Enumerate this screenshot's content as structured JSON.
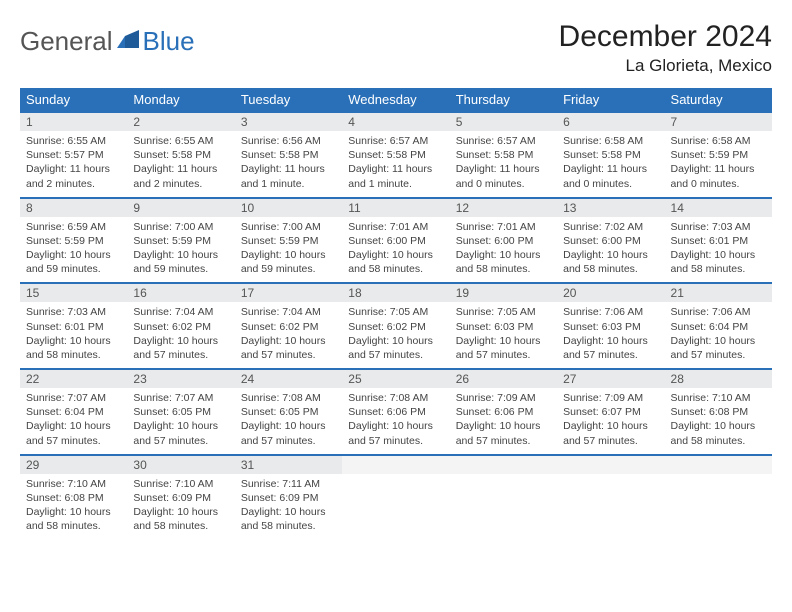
{
  "brand": {
    "word1": "General",
    "word2": "Blue"
  },
  "title": "December 2024",
  "location": "La Glorieta, Mexico",
  "colors": {
    "header_bg": "#2a70b8",
    "header_text": "#ffffff",
    "daynum_bg": "#e9eaeb",
    "row_divider": "#2a70b8",
    "body_text": "#444444",
    "brand_gray": "#555555",
    "brand_blue": "#2a70b8"
  },
  "day_headers": [
    "Sunday",
    "Monday",
    "Tuesday",
    "Wednesday",
    "Thursday",
    "Friday",
    "Saturday"
  ],
  "weeks": [
    [
      {
        "n": "1",
        "sr": "Sunrise: 6:55 AM",
        "ss": "Sunset: 5:57 PM",
        "dl": "Daylight: 11 hours and 2 minutes."
      },
      {
        "n": "2",
        "sr": "Sunrise: 6:55 AM",
        "ss": "Sunset: 5:58 PM",
        "dl": "Daylight: 11 hours and 2 minutes."
      },
      {
        "n": "3",
        "sr": "Sunrise: 6:56 AM",
        "ss": "Sunset: 5:58 PM",
        "dl": "Daylight: 11 hours and 1 minute."
      },
      {
        "n": "4",
        "sr": "Sunrise: 6:57 AM",
        "ss": "Sunset: 5:58 PM",
        "dl": "Daylight: 11 hours and 1 minute."
      },
      {
        "n": "5",
        "sr": "Sunrise: 6:57 AM",
        "ss": "Sunset: 5:58 PM",
        "dl": "Daylight: 11 hours and 0 minutes."
      },
      {
        "n": "6",
        "sr": "Sunrise: 6:58 AM",
        "ss": "Sunset: 5:58 PM",
        "dl": "Daylight: 11 hours and 0 minutes."
      },
      {
        "n": "7",
        "sr": "Sunrise: 6:58 AM",
        "ss": "Sunset: 5:59 PM",
        "dl": "Daylight: 11 hours and 0 minutes."
      }
    ],
    [
      {
        "n": "8",
        "sr": "Sunrise: 6:59 AM",
        "ss": "Sunset: 5:59 PM",
        "dl": "Daylight: 10 hours and 59 minutes."
      },
      {
        "n": "9",
        "sr": "Sunrise: 7:00 AM",
        "ss": "Sunset: 5:59 PM",
        "dl": "Daylight: 10 hours and 59 minutes."
      },
      {
        "n": "10",
        "sr": "Sunrise: 7:00 AM",
        "ss": "Sunset: 5:59 PM",
        "dl": "Daylight: 10 hours and 59 minutes."
      },
      {
        "n": "11",
        "sr": "Sunrise: 7:01 AM",
        "ss": "Sunset: 6:00 PM",
        "dl": "Daylight: 10 hours and 58 minutes."
      },
      {
        "n": "12",
        "sr": "Sunrise: 7:01 AM",
        "ss": "Sunset: 6:00 PM",
        "dl": "Daylight: 10 hours and 58 minutes."
      },
      {
        "n": "13",
        "sr": "Sunrise: 7:02 AM",
        "ss": "Sunset: 6:00 PM",
        "dl": "Daylight: 10 hours and 58 minutes."
      },
      {
        "n": "14",
        "sr": "Sunrise: 7:03 AM",
        "ss": "Sunset: 6:01 PM",
        "dl": "Daylight: 10 hours and 58 minutes."
      }
    ],
    [
      {
        "n": "15",
        "sr": "Sunrise: 7:03 AM",
        "ss": "Sunset: 6:01 PM",
        "dl": "Daylight: 10 hours and 58 minutes."
      },
      {
        "n": "16",
        "sr": "Sunrise: 7:04 AM",
        "ss": "Sunset: 6:02 PM",
        "dl": "Daylight: 10 hours and 57 minutes."
      },
      {
        "n": "17",
        "sr": "Sunrise: 7:04 AM",
        "ss": "Sunset: 6:02 PM",
        "dl": "Daylight: 10 hours and 57 minutes."
      },
      {
        "n": "18",
        "sr": "Sunrise: 7:05 AM",
        "ss": "Sunset: 6:02 PM",
        "dl": "Daylight: 10 hours and 57 minutes."
      },
      {
        "n": "19",
        "sr": "Sunrise: 7:05 AM",
        "ss": "Sunset: 6:03 PM",
        "dl": "Daylight: 10 hours and 57 minutes."
      },
      {
        "n": "20",
        "sr": "Sunrise: 7:06 AM",
        "ss": "Sunset: 6:03 PM",
        "dl": "Daylight: 10 hours and 57 minutes."
      },
      {
        "n": "21",
        "sr": "Sunrise: 7:06 AM",
        "ss": "Sunset: 6:04 PM",
        "dl": "Daylight: 10 hours and 57 minutes."
      }
    ],
    [
      {
        "n": "22",
        "sr": "Sunrise: 7:07 AM",
        "ss": "Sunset: 6:04 PM",
        "dl": "Daylight: 10 hours and 57 minutes."
      },
      {
        "n": "23",
        "sr": "Sunrise: 7:07 AM",
        "ss": "Sunset: 6:05 PM",
        "dl": "Daylight: 10 hours and 57 minutes."
      },
      {
        "n": "24",
        "sr": "Sunrise: 7:08 AM",
        "ss": "Sunset: 6:05 PM",
        "dl": "Daylight: 10 hours and 57 minutes."
      },
      {
        "n": "25",
        "sr": "Sunrise: 7:08 AM",
        "ss": "Sunset: 6:06 PM",
        "dl": "Daylight: 10 hours and 57 minutes."
      },
      {
        "n": "26",
        "sr": "Sunrise: 7:09 AM",
        "ss": "Sunset: 6:06 PM",
        "dl": "Daylight: 10 hours and 57 minutes."
      },
      {
        "n": "27",
        "sr": "Sunrise: 7:09 AM",
        "ss": "Sunset: 6:07 PM",
        "dl": "Daylight: 10 hours and 57 minutes."
      },
      {
        "n": "28",
        "sr": "Sunrise: 7:10 AM",
        "ss": "Sunset: 6:08 PM",
        "dl": "Daylight: 10 hours and 58 minutes."
      }
    ],
    [
      {
        "n": "29",
        "sr": "Sunrise: 7:10 AM",
        "ss": "Sunset: 6:08 PM",
        "dl": "Daylight: 10 hours and 58 minutes."
      },
      {
        "n": "30",
        "sr": "Sunrise: 7:10 AM",
        "ss": "Sunset: 6:09 PM",
        "dl": "Daylight: 10 hours and 58 minutes."
      },
      {
        "n": "31",
        "sr": "Sunrise: 7:11 AM",
        "ss": "Sunset: 6:09 PM",
        "dl": "Daylight: 10 hours and 58 minutes."
      },
      null,
      null,
      null,
      null
    ]
  ]
}
